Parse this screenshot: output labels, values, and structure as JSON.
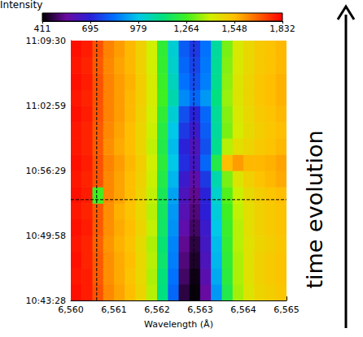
{
  "chart_data": {
    "type": "heatmap",
    "x_label": "Wavelength (Å)",
    "xlim": [
      6560,
      6565
    ],
    "xticks": [
      6560,
      6561,
      6562,
      6563,
      6564,
      6565
    ],
    "ylim": [
      38608,
      40170
    ],
    "yticks": [
      {
        "value": 38608,
        "label": "10:43:28"
      },
      {
        "value": 38998,
        "label": "10:49:58"
      },
      {
        "value": 39389,
        "label": "10:56:29"
      },
      {
        "value": 39779,
        "label": "11:02:59"
      },
      {
        "value": 40170,
        "label": "11:09:30"
      }
    ],
    "x_edges": [
      6560,
      6560.25,
      6560.5,
      6560.75,
      6561,
      6561.25,
      6561.5,
      6561.75,
      6562,
      6562.25,
      6562.5,
      6562.75,
      6563,
      6563.25,
      6563.5,
      6563.75,
      6564,
      6564.25,
      6564.5,
      6564.75,
      6565
    ],
    "y_edges": [
      38608,
      38706,
      38803,
      38901,
      38998,
      39096,
      39193,
      39291,
      39389,
      39486,
      39584,
      39681,
      39779,
      39877,
      39974,
      40072,
      40170
    ],
    "intensity": [
      [
        1810,
        1790,
        1710,
        1630,
        1590,
        1550,
        1490,
        1380,
        1120,
        820,
        470,
        420,
        560,
        900,
        1200,
        1360,
        1440,
        1490,
        1510,
        1530
      ],
      [
        1800,
        1790,
        1700,
        1620,
        1580,
        1540,
        1480,
        1370,
        1130,
        840,
        500,
        430,
        590,
        930,
        1220,
        1370,
        1450,
        1500,
        1520,
        1540
      ],
      [
        1810,
        1780,
        1700,
        1620,
        1580,
        1550,
        1480,
        1380,
        1150,
        860,
        520,
        450,
        620,
        950,
        1230,
        1370,
        1450,
        1500,
        1520,
        1540
      ],
      [
        1800,
        1780,
        1690,
        1610,
        1570,
        1540,
        1470,
        1370,
        1140,
        870,
        540,
        470,
        640,
        960,
        1240,
        1380,
        1450,
        1490,
        1510,
        1530
      ],
      [
        1810,
        1790,
        1700,
        1620,
        1580,
        1550,
        1490,
        1390,
        1160,
        890,
        580,
        500,
        660,
        980,
        1250,
        1380,
        1460,
        1500,
        1520,
        1540
      ],
      [
        1800,
        1780,
        1700,
        1620,
        1570,
        1540,
        1480,
        1380,
        1170,
        900,
        600,
        520,
        690,
        1000,
        1260,
        1390,
        1460,
        1500,
        1520,
        1540
      ],
      [
        1810,
        1790,
        1260,
        1630,
        1590,
        1550,
        1490,
        1390,
        1180,
        920,
        620,
        540,
        700,
        1020,
        1280,
        1400,
        1470,
        1510,
        1530,
        1550
      ],
      [
        1800,
        1780,
        1710,
        1630,
        1590,
        1550,
        1500,
        1400,
        1200,
        950,
        660,
        580,
        740,
        1060,
        1320,
        1440,
        1500,
        1540,
        1560,
        1580
      ],
      [
        1810,
        1790,
        1710,
        1640,
        1600,
        1560,
        1510,
        1410,
        1220,
        980,
        720,
        640,
        820,
        1200,
        1550,
        1600,
        1560,
        1560,
        1570,
        1590
      ],
      [
        1800,
        1780,
        1700,
        1620,
        1580,
        1550,
        1490,
        1390,
        1200,
        960,
        700,
        620,
        780,
        1100,
        1380,
        1460,
        1490,
        1520,
        1540,
        1560
      ],
      [
        1800,
        1780,
        1700,
        1630,
        1590,
        1550,
        1490,
        1400,
        1210,
        980,
        740,
        660,
        800,
        1080,
        1320,
        1420,
        1470,
        1510,
        1530,
        1550
      ],
      [
        1810,
        1790,
        1710,
        1640,
        1600,
        1560,
        1500,
        1410,
        1230,
        1010,
        780,
        700,
        820,
        1090,
        1330,
        1430,
        1480,
        1520,
        1540,
        1560
      ],
      [
        1800,
        1780,
        1710,
        1640,
        1600,
        1560,
        1510,
        1420,
        1260,
        1060,
        880,
        820,
        900,
        1120,
        1350,
        1440,
        1490,
        1530,
        1550,
        1570
      ],
      [
        1810,
        1790,
        1710,
        1640,
        1600,
        1570,
        1510,
        1420,
        1250,
        1040,
        840,
        780,
        860,
        1100,
        1340,
        1440,
        1490,
        1530,
        1550,
        1570
      ],
      [
        1800,
        1780,
        1700,
        1630,
        1590,
        1560,
        1500,
        1410,
        1240,
        1020,
        820,
        760,
        850,
        1090,
        1330,
        1430,
        1480,
        1520,
        1540,
        1560
      ],
      [
        1810,
        1790,
        1710,
        1640,
        1600,
        1560,
        1500,
        1410,
        1230,
        1010,
        800,
        740,
        840,
        1080,
        1320,
        1430,
        1480,
        1520,
        1540,
        1560
      ]
    ],
    "colorbar": {
      "label": "Intensity",
      "range": [
        411,
        1832
      ],
      "ticks": [
        411,
        695,
        979,
        1264,
        1548,
        1832
      ]
    },
    "reference_lines": {
      "x": [
        6560.6,
        6562.85
      ],
      "y": [
        39214
      ]
    },
    "annotation": "time evolution"
  }
}
